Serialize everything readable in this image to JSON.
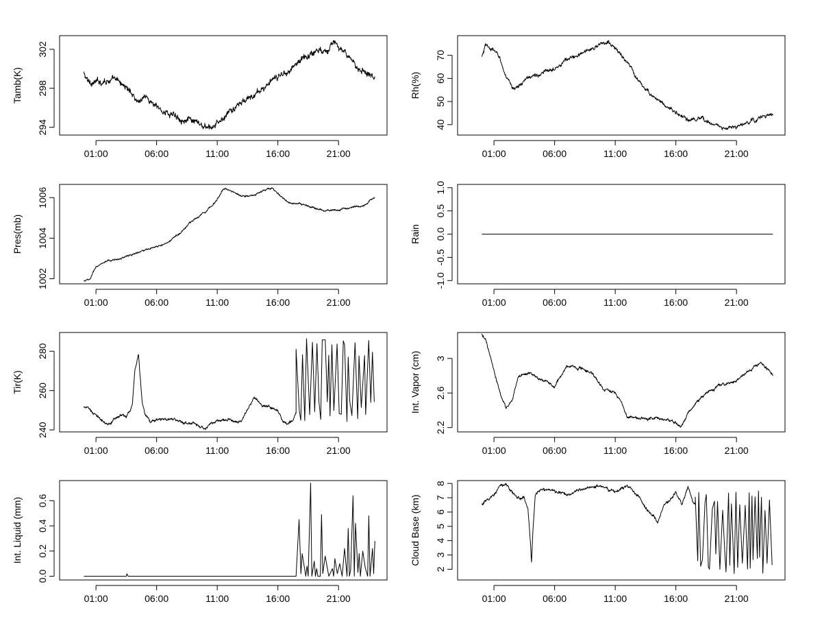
{
  "figure": {
    "time_axis": {
      "ticks": [
        "01:00",
        "06:00",
        "11:00",
        "16:00",
        "21:00"
      ],
      "tick_hours": [
        1,
        6,
        11,
        16,
        21
      ],
      "range_hours": [
        -2,
        25
      ]
    }
  },
  "chart_data": [
    {
      "type": "line",
      "ylabel": "Tamb(K)",
      "yticks": [
        294,
        298,
        302
      ],
      "ylim": [
        293.2,
        303.4
      ],
      "noise": 0.35,
      "series": [
        {
          "x": [
            0,
            0.3,
            1,
            2,
            3,
            4,
            4.5,
            5,
            6,
            7,
            8,
            9,
            10,
            10.5,
            11,
            12,
            13,
            14,
            15,
            16,
            17,
            18,
            19,
            20,
            20.8,
            21.5,
            22,
            23,
            24
          ],
          "y": [
            299.5,
            298.7,
            298.6,
            298.9,
            298.6,
            297.5,
            296.6,
            297.3,
            296.0,
            295.4,
            295.0,
            294.5,
            294.0,
            293.8,
            294.3,
            295.5,
            296.5,
            297.2,
            298.2,
            299.1,
            300.0,
            301.0,
            301.8,
            302.1,
            302.6,
            301.6,
            300.7,
            299.9,
            299.3
          ]
        }
      ]
    },
    {
      "type": "line",
      "ylabel": "Rh(%)",
      "yticks": [
        40,
        50,
        60,
        70
      ],
      "ylim": [
        35.5,
        78.5
      ],
      "noise": 0.9,
      "series": [
        {
          "x": [
            0,
            0.3,
            1,
            1.5,
            2,
            2.5,
            3,
            4,
            5,
            6,
            7,
            8,
            9,
            10,
            10.5,
            11,
            12,
            13,
            14,
            15,
            16,
            17,
            18,
            19,
            20,
            21,
            22,
            23,
            24
          ],
          "y": [
            69,
            74,
            72,
            69,
            60,
            56,
            56.5,
            61,
            62,
            65,
            68,
            70,
            73,
            75,
            75.5,
            73,
            67,
            58,
            53,
            49,
            45,
            42,
            42,
            41,
            38,
            39,
            41,
            43,
            44.5
          ]
        }
      ]
    },
    {
      "type": "line",
      "ylabel": "Pres(mb)",
      "yticks": [
        1002,
        1004,
        1006
      ],
      "ylim": [
        1001.75,
        1006.65
      ],
      "noise": 0.05,
      "series": [
        {
          "x": [
            0,
            0.5,
            1,
            2,
            3,
            4,
            5,
            6,
            7,
            8,
            9,
            10,
            11,
            11.5,
            12,
            13,
            14,
            15,
            15.5,
            16,
            17,
            18,
            19,
            20,
            21,
            22,
            23,
            24
          ],
          "y": [
            1001.9,
            1001.95,
            1002.6,
            1002.85,
            1003.0,
            1003.2,
            1003.4,
            1003.55,
            1003.8,
            1004.3,
            1004.9,
            1005.3,
            1005.9,
            1006.45,
            1006.35,
            1006.1,
            1006.1,
            1006.4,
            1006.45,
            1006.2,
            1005.7,
            1005.65,
            1005.5,
            1005.35,
            1005.4,
            1005.5,
            1005.6,
            1006.0
          ]
        }
      ]
    },
    {
      "type": "line",
      "ylabel": "Rain",
      "yticks": [
        -1.0,
        -0.5,
        0.0,
        0.5,
        1.0
      ],
      "ytick_labels": [
        "-1.0",
        "-0.5",
        "0.0",
        "0.5",
        "1.0"
      ],
      "ylim": [
        -1.07,
        1.07
      ],
      "noise": 0,
      "series": [
        {
          "x": [
            0,
            24
          ],
          "y": [
            0,
            0
          ]
        }
      ]
    },
    {
      "type": "line",
      "ylabel": "Tir(K)",
      "yticks": [
        240,
        260,
        280
      ],
      "ylim": [
        239,
        289.5
      ],
      "noise": 0.8,
      "spikes": {
        "from": 17.5,
        "to": 24,
        "low": 244,
        "high": 287,
        "step": 0.18
      },
      "series": [
        {
          "x": [
            0,
            1,
            2,
            3,
            3.5,
            4,
            4.2,
            4.5,
            4.8,
            5,
            5.5,
            6,
            7,
            8,
            9,
            10,
            11,
            12,
            13,
            13.5,
            14,
            15,
            16,
            16.5,
            17,
            17.5
          ],
          "y": [
            252,
            248,
            242,
            248,
            246,
            252,
            270,
            279,
            255,
            249,
            244,
            245,
            246,
            244,
            243,
            241,
            245,
            245,
            245,
            250,
            256,
            252,
            250,
            244,
            244,
            248
          ]
        }
      ]
    },
    {
      "type": "line",
      "ylabel": "Int. Vapor (cm)",
      "yticks": [
        2.2,
        2.6,
        3.0
      ],
      "ylim": [
        2.15,
        3.3
      ],
      "noise": 0.018,
      "series": [
        {
          "x": [
            0,
            0.3,
            1,
            1.5,
            2,
            2.5,
            3,
            4,
            5,
            6,
            7,
            8,
            9,
            10,
            11,
            11.5,
            12,
            13,
            14,
            15,
            16,
            16.5,
            17,
            18,
            19,
            20,
            21,
            22,
            23,
            24
          ],
          "y": [
            3.27,
            3.22,
            2.85,
            2.6,
            2.42,
            2.5,
            2.8,
            2.82,
            2.75,
            2.68,
            2.9,
            2.9,
            2.85,
            2.65,
            2.6,
            2.5,
            2.32,
            2.3,
            2.32,
            2.3,
            2.25,
            2.22,
            2.35,
            2.55,
            2.65,
            2.7,
            2.75,
            2.85,
            2.95,
            2.8
          ]
        }
      ]
    },
    {
      "type": "line",
      "ylabel": "Int. Liquid (mm)",
      "yticks": [
        0.0,
        0.2,
        0.4,
        0.6
      ],
      "ytick_labels": [
        "0.0",
        "0.2",
        "0.4",
        "0.6"
      ],
      "ylim": [
        -0.03,
        0.76
      ],
      "noise": 0,
      "series": [
        {
          "x": [
            0,
            3.5,
            3.55,
            3.6,
            3.65,
            17.5,
            17.75,
            17.9,
            18.0,
            18.3,
            18.4,
            18.5,
            18.7,
            18.8,
            19.0,
            19.1,
            19.2,
            19.3,
            19.5,
            19.6,
            19.7,
            19.9,
            20.2,
            20.5,
            20.6,
            20.7,
            20.9,
            21.1,
            21.3,
            21.5,
            21.7,
            21.8,
            21.9,
            22.0,
            22.2,
            22.3,
            22.4,
            22.6,
            22.7,
            22.8,
            23.0,
            23.2,
            23.4,
            23.5,
            23.6,
            23.8,
            23.9,
            24.0
          ],
          "y": [
            0,
            0,
            0.02,
            0.01,
            0,
            0,
            0.45,
            0.02,
            0.18,
            0.0,
            0.08,
            0.0,
            0.74,
            0.0,
            0.12,
            0.0,
            0.06,
            0.0,
            0.0,
            0.49,
            0.02,
            0.16,
            0.0,
            0.06,
            0.0,
            0.14,
            0.02,
            0.1,
            0.0,
            0.22,
            0.0,
            0.38,
            0.0,
            0.05,
            0.64,
            0.0,
            0.42,
            0.03,
            0.18,
            0.0,
            0.2,
            0.07,
            0.0,
            0.48,
            0.0,
            0.22,
            0.02,
            0.28
          ]
        }
      ]
    },
    {
      "type": "line",
      "ylabel": "Cloud Base (km)",
      "yticks": [
        2,
        3,
        4,
        5,
        6,
        7,
        8
      ],
      "ylim": [
        1.25,
        8.2
      ],
      "noise": 0.12,
      "spikes": {
        "from": 17.6,
        "to": 24,
        "low": 1.6,
        "high": 7.5,
        "step": 0.16
      },
      "series": [
        {
          "x": [
            0,
            0.5,
            1,
            1.5,
            2,
            2.5,
            3,
            3.5,
            3.8,
            4,
            4.1,
            4.2,
            4.4,
            4.6,
            5,
            6,
            7,
            8,
            9,
            10,
            11,
            12,
            13,
            13.5,
            14,
            14.5,
            15,
            15.5,
            16,
            16.5,
            17,
            17.5
          ],
          "y": [
            6.5,
            6.9,
            7.2,
            7.9,
            8.0,
            7.3,
            7.0,
            6.9,
            6.2,
            4.0,
            2.4,
            4.5,
            7.2,
            7.4,
            7.6,
            7.5,
            7.2,
            7.6,
            7.8,
            7.7,
            7.5,
            7.8,
            7.0,
            6.3,
            6.0,
            5.3,
            6.5,
            6.8,
            7.4,
            6.5,
            7.7,
            6.5
          ]
        }
      ]
    }
  ]
}
